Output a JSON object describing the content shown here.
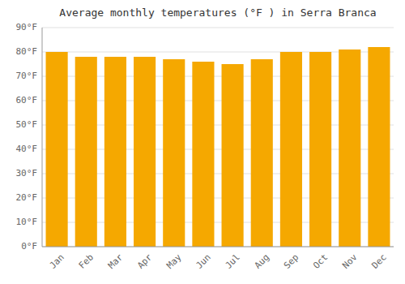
{
  "chart_data": {
    "type": "bar",
    "title": "Average monthly temperatures (°F ) in Serra Branca",
    "categories": [
      "Jan",
      "Feb",
      "Mar",
      "Apr",
      "May",
      "Jun",
      "Jul",
      "Aug",
      "Sep",
      "Oct",
      "Nov",
      "Dec"
    ],
    "values": [
      80,
      78,
      78,
      78,
      77,
      76,
      75,
      77,
      80,
      80,
      81,
      82
    ],
    "color": "#F5A800",
    "ylim": [
      0,
      90
    ],
    "yticks": [
      {
        "value": 0,
        "label": "0°F"
      },
      {
        "value": 10,
        "label": "10°F"
      },
      {
        "value": 20,
        "label": "20°F"
      },
      {
        "value": 30,
        "label": "30°F"
      },
      {
        "value": 40,
        "label": "40°F"
      },
      {
        "value": 50,
        "label": "50°F"
      },
      {
        "value": 60,
        "label": "60°F"
      },
      {
        "value": 70,
        "label": "70°F"
      },
      {
        "value": 80,
        "label": "80°F"
      },
      {
        "value": 90,
        "label": "90°F"
      }
    ],
    "grid": true
  }
}
